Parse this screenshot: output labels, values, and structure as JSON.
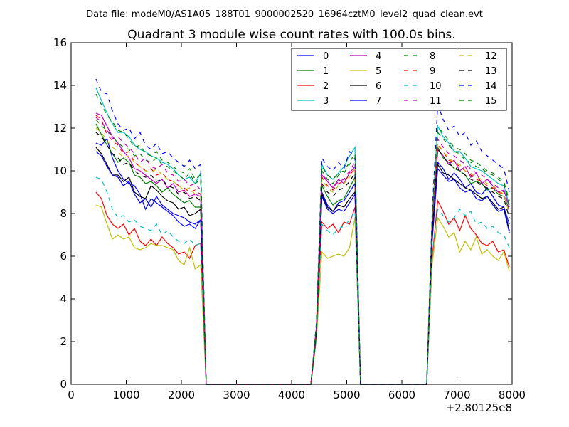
{
  "chart_data": {
    "type": "line",
    "suptitle": "Data file: modeM0/AS1A05_188T01_9000002520_16964cztM0_level2_quad_clean.evt",
    "title": "Quadrant 3 module wise count rates with 100.0s bins.",
    "xlabel": "",
    "ylabel": "",
    "xlim": [
      0,
      8000
    ],
    "ylim": [
      0,
      16
    ],
    "x_offset_label": "+2.80125e8",
    "x_ticks": [
      0,
      1000,
      2000,
      3000,
      4000,
      5000,
      6000,
      7000,
      8000
    ],
    "x_tick_labels": [
      "0",
      "1000",
      "2000",
      "3000",
      "4000",
      "5000",
      "6000",
      "7000",
      "8000"
    ],
    "y_ticks": [
      0,
      2,
      4,
      6,
      8,
      10,
      12,
      14,
      16
    ],
    "y_tick_labels": [
      "0",
      "2",
      "4",
      "6",
      "8",
      "10",
      "12",
      "14",
      "16"
    ],
    "legend_location": "upper right",
    "segments": [
      {
        "start": 450,
        "n": 21
      },
      {
        "start": 4450,
        "n": 9
      },
      {
        "start": 6550,
        "n": 15
      }
    ],
    "series": [
      {
        "name": "0",
        "color": "#0000ff",
        "dash": "solid",
        "values": [
          [
            11.3,
            11.2,
            11.5,
            10.6,
            10.0,
            9.6,
            9.4,
            9.3,
            8.9,
            8.2,
            8.7,
            8.5,
            8.3,
            8.1,
            7.9,
            7.6,
            7.4,
            7.5,
            7.3,
            7.7,
            0.0
          ],
          [
            2.5,
            9.0,
            8.4,
            8.1,
            8.5,
            8.6,
            9.0,
            9.4,
            0.0
          ],
          [
            6.8,
            10.4,
            10.1,
            9.6,
            9.9,
            9.6,
            9.2,
            9.4,
            9.0,
            8.9,
            9.2,
            8.8,
            8.4,
            8.3,
            7.5
          ]
        ]
      },
      {
        "name": "1",
        "color": "#008000",
        "dash": "solid",
        "values": [
          [
            12.2,
            11.7,
            11.2,
            10.8,
            10.4,
            10.6,
            10.4,
            9.8,
            9.7,
            9.4,
            9.5,
            9.3,
            9.0,
            9.2,
            8.9,
            8.7,
            8.5,
            8.6,
            8.3,
            8.3,
            0.0
          ],
          [
            2.6,
            9.3,
            8.8,
            8.4,
            8.6,
            8.7,
            9.2,
            9.7,
            0.0
          ],
          [
            7.2,
            11.1,
            10.6,
            10.4,
            10.1,
            10.0,
            9.8,
            9.4,
            9.5,
            9.4,
            9.1,
            9.2,
            8.9,
            8.8,
            8.2
          ]
        ]
      },
      {
        "name": "2",
        "color": "#ff0000",
        "dash": "solid",
        "values": [
          [
            9.0,
            8.7,
            7.9,
            7.5,
            7.3,
            7.5,
            7.0,
            7.3,
            6.7,
            6.5,
            6.8,
            6.5,
            6.9,
            6.6,
            6.4,
            6.1,
            6.2,
            5.9,
            6.5,
            6.6,
            0.0
          ],
          [
            2.2,
            7.6,
            7.3,
            7.5,
            7.1,
            7.6,
            7.5,
            8.3,
            0.0
          ],
          [
            5.9,
            8.6,
            8.1,
            7.5,
            7.8,
            7.2,
            7.9,
            7.3,
            7.0,
            6.6,
            6.5,
            6.7,
            6.2,
            6.3,
            5.5
          ]
        ]
      },
      {
        "name": "3",
        "color": "#00bfbf",
        "dash": "solid",
        "values": [
          [
            13.9,
            13.3,
            12.7,
            12.2,
            11.8,
            11.8,
            11.6,
            11.2,
            11.0,
            10.9,
            10.7,
            10.6,
            10.4,
            10.3,
            10.1,
            9.8,
            9.6,
            9.7,
            9.4,
            9.9,
            0.0
          ],
          [
            2.8,
            10.3,
            9.8,
            9.6,
            9.9,
            10.2,
            10.7,
            11.1,
            0.0
          ],
          [
            7.8,
            12.1,
            11.6,
            11.3,
            10.9,
            10.9,
            10.6,
            10.2,
            10.1,
            10.0,
            9.8,
            9.6,
            9.4,
            9.3,
            8.4
          ]
        ]
      },
      {
        "name": "4",
        "color": "#bf00bf",
        "dash": "solid",
        "values": [
          [
            12.7,
            12.6,
            12.1,
            11.6,
            11.3,
            10.9,
            10.6,
            10.1,
            10.0,
            9.8,
            9.6,
            9.4,
            9.6,
            9.2,
            9.4,
            9.0,
            9.1,
            8.8,
            8.9,
            8.8,
            0.0
          ],
          [
            2.6,
            9.8,
            9.5,
            9.2,
            9.6,
            9.4,
            9.9,
            10.2,
            0.0
          ],
          [
            7.4,
            11.0,
            10.7,
            10.3,
            10.5,
            10.0,
            10.2,
            9.7,
            9.9,
            9.4,
            9.6,
            9.3,
            9.0,
            9.1,
            8.3
          ]
        ]
      },
      {
        "name": "5",
        "color": "#bfbf00",
        "dash": "solid",
        "values": [
          [
            8.4,
            8.3,
            7.5,
            6.8,
            7.0,
            6.8,
            6.9,
            6.4,
            6.3,
            6.4,
            6.6,
            6.5,
            6.5,
            6.4,
            6.3,
            5.8,
            5.6,
            6.4,
            5.4,
            5.6,
            0.0
          ],
          [
            2.1,
            6.2,
            5.9,
            6.0,
            6.1,
            6.0,
            6.4,
            7.8,
            0.0
          ],
          [
            5.6,
            7.8,
            7.4,
            6.9,
            7.1,
            6.2,
            6.7,
            6.3,
            6.9,
            6.1,
            6.3,
            6.0,
            5.8,
            6.2,
            5.3
          ]
        ]
      },
      {
        "name": "6",
        "color": "#000000",
        "dash": "solid",
        "values": [
          [
            11.1,
            10.8,
            10.3,
            9.8,
            9.8,
            9.5,
            9.7,
            9.0,
            8.8,
            8.7,
            9.3,
            9.1,
            8.8,
            8.6,
            8.5,
            8.2,
            8.3,
            7.9,
            8.0,
            8.2,
            0.0
          ],
          [
            2.4,
            8.9,
            8.3,
            8.1,
            8.4,
            8.3,
            8.7,
            9.0,
            0.0
          ],
          [
            6.9,
            10.3,
            9.9,
            9.8,
            9.6,
            9.4,
            9.2,
            9.1,
            8.9,
            8.7,
            8.8,
            8.5,
            8.2,
            8.3,
            7.2
          ]
        ]
      },
      {
        "name": "7",
        "color": "#0000ff",
        "dash": "solid",
        "values": [
          [
            10.9,
            10.7,
            10.2,
            9.8,
            9.7,
            9.3,
            9.5,
            8.9,
            8.5,
            8.7,
            8.3,
            8.8,
            8.4,
            8.2,
            8.0,
            7.9,
            7.8,
            7.6,
            7.5,
            7.7,
            0.0
          ],
          [
            2.4,
            8.8,
            8.2,
            8.0,
            8.2,
            8.1,
            8.5,
            8.9,
            0.0
          ],
          [
            6.7,
            10.1,
            9.8,
            9.5,
            9.6,
            9.2,
            9.0,
            9.1,
            8.7,
            8.6,
            8.8,
            8.4,
            8.1,
            8.2,
            7.1
          ]
        ]
      },
      {
        "name": "8",
        "color": "#008000",
        "dash": "dashed",
        "values": [
          [
            12.4,
            12.1,
            11.9,
            11.6,
            11.3,
            11.1,
            11.0,
            10.7,
            10.8,
            10.5,
            10.4,
            10.6,
            10.3,
            10.2,
            10.0,
            9.8,
            9.6,
            9.9,
            9.4,
            9.6,
            0.0
          ],
          [
            2.7,
            10.0,
            9.6,
            9.4,
            9.8,
            9.9,
            10.3,
            10.6,
            0.0
          ],
          [
            7.6,
            11.8,
            11.5,
            11.2,
            10.9,
            10.8,
            10.5,
            10.4,
            10.2,
            10.1,
            9.9,
            9.8,
            9.6,
            9.4,
            8.4
          ]
        ]
      },
      {
        "name": "9",
        "color": "#ff0000",
        "dash": "dashed",
        "values": [
          [
            12.6,
            12.4,
            11.7,
            11.4,
            11.2,
            10.8,
            10.9,
            10.4,
            10.2,
            10.0,
            10.1,
            9.8,
            9.9,
            9.6,
            9.5,
            9.3,
            9.2,
            9.0,
            9.1,
            8.9,
            0.0
          ],
          [
            2.6,
            9.7,
            9.3,
            9.1,
            9.4,
            9.5,
            9.8,
            10.1,
            0.0
          ],
          [
            7.4,
            11.2,
            10.9,
            10.5,
            10.4,
            10.2,
            10.0,
            9.8,
            9.6,
            9.5,
            9.3,
            9.2,
            9.0,
            8.9,
            8.0
          ]
        ]
      },
      {
        "name": "10",
        "color": "#00bfbf",
        "dash": "dashed",
        "values": [
          [
            9.7,
            9.6,
            9.0,
            8.2,
            7.8,
            7.9,
            7.6,
            7.7,
            7.4,
            7.3,
            7.2,
            7.5,
            7.0,
            7.2,
            6.9,
            6.7,
            6.6,
            6.8,
            6.5,
            6.6,
            0.0
          ],
          [
            2.2,
            7.5,
            7.2,
            7.0,
            7.3,
            7.4,
            7.7,
            8.1,
            0.0
          ],
          [
            6.1,
            8.2,
            7.9,
            7.6,
            7.8,
            8.2,
            7.9,
            8.1,
            7.5,
            7.6,
            7.3,
            7.4,
            7.1,
            7.0,
            6.4
          ]
        ]
      },
      {
        "name": "11",
        "color": "#bf00bf",
        "dash": "dashed",
        "values": [
          [
            12.5,
            12.3,
            11.9,
            11.5,
            11.6,
            11.3,
            11.1,
            10.8,
            10.4,
            10.6,
            10.2,
            10.1,
            10.3,
            9.9,
            9.8,
            9.5,
            9.6,
            9.3,
            9.4,
            9.1,
            0.0
          ],
          [
            2.6,
            9.9,
            9.5,
            9.2,
            9.5,
            9.6,
            10.0,
            10.4,
            0.0
          ],
          [
            7.5,
            11.5,
            11.1,
            10.8,
            10.7,
            10.5,
            10.3,
            10.1,
            9.9,
            9.8,
            9.6,
            9.4,
            9.2,
            9.0,
            8.1
          ]
        ]
      },
      {
        "name": "12",
        "color": "#bfbf00",
        "dash": "dashed",
        "values": [
          [
            12.0,
            11.8,
            11.4,
            11.1,
            10.9,
            10.6,
            10.7,
            10.4,
            10.2,
            10.0,
            9.9,
            10.1,
            9.8,
            9.6,
            9.5,
            9.3,
            9.1,
            9.2,
            8.9,
            8.8,
            0.0
          ],
          [
            2.6,
            9.6,
            9.2,
            9.0,
            9.3,
            9.4,
            9.7,
            10.1,
            0.0
          ],
          [
            7.3,
            11.3,
            10.9,
            10.6,
            10.4,
            10.3,
            10.0,
            9.9,
            9.7,
            9.6,
            9.4,
            9.3,
            9.1,
            8.9,
            8.0
          ]
        ]
      },
      {
        "name": "13",
        "color": "#000000",
        "dash": "dashed",
        "values": [
          [
            11.8,
            11.6,
            11.2,
            10.8,
            10.6,
            10.3,
            10.4,
            10.0,
            9.8,
            9.7,
            9.8,
            9.5,
            9.6,
            9.3,
            9.2,
            8.9,
            9.0,
            8.7,
            8.8,
            8.6,
            0.0
          ],
          [
            2.5,
            9.4,
            9.0,
            8.8,
            9.1,
            9.2,
            9.5,
            9.9,
            0.0
          ],
          [
            7.1,
            11.0,
            10.7,
            10.3,
            10.2,
            10.0,
            9.8,
            9.6,
            9.5,
            9.3,
            9.2,
            9.0,
            8.8,
            8.7,
            7.8
          ]
        ]
      },
      {
        "name": "14",
        "color": "#0000ff",
        "dash": "dashed",
        "values": [
          [
            14.3,
            13.7,
            13.6,
            12.8,
            12.2,
            11.9,
            12.0,
            11.5,
            11.8,
            11.2,
            11.0,
            11.3,
            10.8,
            10.9,
            10.6,
            10.4,
            10.2,
            10.5,
            10.1,
            10.3,
            0.0
          ],
          [
            2.9,
            10.6,
            10.2,
            10.0,
            10.4,
            10.1,
            10.9,
            10.7,
            0.0
          ],
          [
            8.0,
            13.1,
            12.4,
            11.9,
            12.1,
            11.6,
            11.8,
            11.2,
            11.4,
            10.9,
            10.7,
            10.5,
            10.3,
            10.1,
            9.0
          ]
        ]
      },
      {
        "name": "15",
        "color": "#008000",
        "dash": "dashed",
        "values": [
          [
            13.6,
            13.1,
            12.6,
            12.3,
            11.9,
            11.8,
            11.5,
            11.1,
            11.2,
            10.8,
            10.7,
            10.9,
            10.5,
            10.4,
            10.2,
            10.0,
            9.9,
            10.1,
            9.6,
            9.8,
            0.0
          ],
          [
            2.8,
            10.2,
            9.8,
            9.6,
            9.9,
            10.0,
            10.4,
            10.8,
            0.0
          ],
          [
            7.8,
            12.0,
            11.8,
            11.4,
            11.1,
            11.0,
            10.8,
            10.5,
            10.4,
            10.2,
            10.0,
            9.9,
            9.7,
            9.5,
            8.6
          ]
        ]
      }
    ]
  }
}
